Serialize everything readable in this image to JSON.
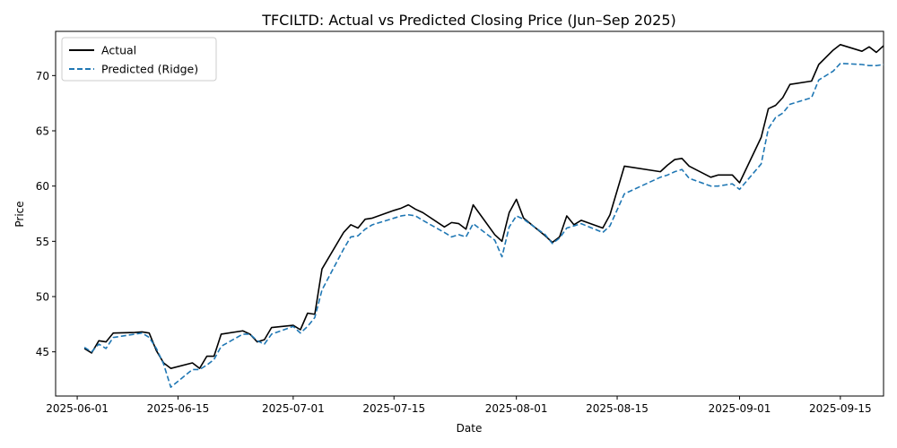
{
  "chart_data": {
    "type": "line",
    "title": "TFCILTD: Actual vs Predicted Closing Price (Jun–Sep 2025)",
    "xlabel": "Date",
    "ylabel": "Price",
    "xlim": [
      "2025-05-29",
      "2025-09-21"
    ],
    "ylim": [
      41.0,
      74.0
    ],
    "x_ticks": [
      "2025-06-01",
      "2025-06-15",
      "2025-07-01",
      "2025-07-15",
      "2025-08-01",
      "2025-08-15",
      "2025-09-01",
      "2025-09-15"
    ],
    "y_ticks": [
      45,
      50,
      55,
      60,
      65,
      70
    ],
    "grid": false,
    "legend_position": "top-left",
    "series": [
      {
        "name": "Actual",
        "color": "#000000",
        "style": "solid",
        "points": [
          [
            "2025-06-02",
            45.3
          ],
          [
            "2025-06-03",
            44.9
          ],
          [
            "2025-06-04",
            46.0
          ],
          [
            "2025-06-05",
            45.9
          ],
          [
            "2025-06-06",
            46.7
          ],
          [
            "2025-06-09",
            46.75
          ],
          [
            "2025-06-10",
            46.8
          ],
          [
            "2025-06-11",
            46.7
          ],
          [
            "2025-06-12",
            45.1
          ],
          [
            "2025-06-13",
            44.0
          ],
          [
            "2025-06-14",
            43.5
          ],
          [
            "2025-06-17",
            44.0
          ],
          [
            "2025-06-18",
            43.5
          ],
          [
            "2025-06-19",
            44.6
          ],
          [
            "2025-06-20",
            44.6
          ],
          [
            "2025-06-21",
            46.6
          ],
          [
            "2025-06-24",
            46.9
          ],
          [
            "2025-06-25",
            46.6
          ],
          [
            "2025-06-26",
            45.9
          ],
          [
            "2025-06-27",
            46.1
          ],
          [
            "2025-06-28",
            47.2
          ],
          [
            "2025-07-01",
            47.4
          ],
          [
            "2025-07-02",
            47.0
          ],
          [
            "2025-07-03",
            48.5
          ],
          [
            "2025-07-04",
            48.4
          ],
          [
            "2025-07-05",
            52.5
          ],
          [
            "2025-07-08",
            55.8
          ],
          [
            "2025-07-09",
            56.5
          ],
          [
            "2025-07-10",
            56.2
          ],
          [
            "2025-07-11",
            57.0
          ],
          [
            "2025-07-12",
            57.1
          ],
          [
            "2025-07-15",
            57.8
          ],
          [
            "2025-07-16",
            58.0
          ],
          [
            "2025-07-17",
            58.3
          ],
          [
            "2025-07-18",
            57.9
          ],
          [
            "2025-07-19",
            57.6
          ],
          [
            "2025-07-22",
            56.3
          ],
          [
            "2025-07-23",
            56.7
          ],
          [
            "2025-07-24",
            56.6
          ],
          [
            "2025-07-25",
            56.1
          ],
          [
            "2025-07-26",
            58.3
          ],
          [
            "2025-07-29",
            55.6
          ],
          [
            "2025-07-30",
            55.0
          ],
          [
            "2025-07-31",
            57.6
          ],
          [
            "2025-08-01",
            58.8
          ],
          [
            "2025-08-02",
            57.1
          ],
          [
            "2025-08-05",
            55.5
          ],
          [
            "2025-08-06",
            54.9
          ],
          [
            "2025-08-07",
            55.4
          ],
          [
            "2025-08-08",
            57.3
          ],
          [
            "2025-08-09",
            56.5
          ],
          [
            "2025-08-10",
            56.9
          ],
          [
            "2025-08-13",
            56.2
          ],
          [
            "2025-08-14",
            57.4
          ],
          [
            "2025-08-16",
            61.8
          ],
          [
            "2025-08-21",
            61.3
          ],
          [
            "2025-08-22",
            61.9
          ],
          [
            "2025-08-23",
            62.4
          ],
          [
            "2025-08-24",
            62.5
          ],
          [
            "2025-08-25",
            61.8
          ],
          [
            "2025-08-28",
            60.8
          ],
          [
            "2025-08-29",
            61.0
          ],
          [
            "2025-08-31",
            61.0
          ],
          [
            "2025-09-01",
            60.3
          ],
          [
            "2025-09-04",
            64.4
          ],
          [
            "2025-09-05",
            67.0
          ],
          [
            "2025-09-06",
            67.3
          ],
          [
            "2025-09-07",
            68.0
          ],
          [
            "2025-09-08",
            69.2
          ],
          [
            "2025-09-11",
            69.5
          ],
          [
            "2025-09-12",
            71.0
          ],
          [
            "2025-09-14",
            72.3
          ],
          [
            "2025-09-15",
            72.8
          ],
          [
            "2025-09-18",
            72.2
          ],
          [
            "2025-09-19",
            72.6
          ],
          [
            "2025-09-20",
            72.1
          ],
          [
            "2025-09-21",
            72.7
          ]
        ]
      },
      {
        "name": "Predicted (Ridge)",
        "color": "#1f77b4",
        "style": "dashed",
        "points": [
          [
            "2025-06-02",
            45.4
          ],
          [
            "2025-06-03",
            45.0
          ],
          [
            "2025-06-04",
            45.7
          ],
          [
            "2025-06-05",
            45.3
          ],
          [
            "2025-06-06",
            46.3
          ],
          [
            "2025-06-09",
            46.6
          ],
          [
            "2025-06-10",
            46.7
          ],
          [
            "2025-06-11",
            46.3
          ],
          [
            "2025-06-12",
            45.3
          ],
          [
            "2025-06-13",
            43.9
          ],
          [
            "2025-06-14",
            41.8
          ],
          [
            "2025-06-17",
            43.4
          ],
          [
            "2025-06-18",
            43.4
          ],
          [
            "2025-06-19",
            43.8
          ],
          [
            "2025-06-20",
            44.3
          ],
          [
            "2025-06-21",
            45.5
          ],
          [
            "2025-06-24",
            46.6
          ],
          [
            "2025-06-25",
            46.6
          ],
          [
            "2025-06-26",
            46.0
          ],
          [
            "2025-06-27",
            45.7
          ],
          [
            "2025-06-28",
            46.6
          ],
          [
            "2025-07-01",
            47.3
          ],
          [
            "2025-07-02",
            46.7
          ],
          [
            "2025-07-03",
            47.3
          ],
          [
            "2025-07-04",
            48.1
          ],
          [
            "2025-07-05",
            50.6
          ],
          [
            "2025-07-08",
            54.3
          ],
          [
            "2025-07-09",
            55.4
          ],
          [
            "2025-07-10",
            55.5
          ],
          [
            "2025-07-11",
            56.1
          ],
          [
            "2025-07-12",
            56.5
          ],
          [
            "2025-07-15",
            57.1
          ],
          [
            "2025-07-16",
            57.3
          ],
          [
            "2025-07-17",
            57.4
          ],
          [
            "2025-07-18",
            57.3
          ],
          [
            "2025-07-19",
            56.9
          ],
          [
            "2025-07-22",
            55.8
          ],
          [
            "2025-07-23",
            55.4
          ],
          [
            "2025-07-24",
            55.6
          ],
          [
            "2025-07-25",
            55.4
          ],
          [
            "2025-07-26",
            56.6
          ],
          [
            "2025-07-29",
            55.1
          ],
          [
            "2025-07-30",
            53.6
          ],
          [
            "2025-07-31",
            56.3
          ],
          [
            "2025-08-01",
            57.3
          ],
          [
            "2025-08-02",
            57.0
          ],
          [
            "2025-08-05",
            55.6
          ],
          [
            "2025-08-06",
            54.8
          ],
          [
            "2025-08-07",
            55.3
          ],
          [
            "2025-08-08",
            56.2
          ],
          [
            "2025-08-09",
            56.4
          ],
          [
            "2025-08-10",
            56.6
          ],
          [
            "2025-08-13",
            55.8
          ],
          [
            "2025-08-14",
            56.4
          ],
          [
            "2025-08-16",
            59.3
          ],
          [
            "2025-08-21",
            60.8
          ],
          [
            "2025-08-22",
            61.0
          ],
          [
            "2025-08-23",
            61.3
          ],
          [
            "2025-08-24",
            61.5
          ],
          [
            "2025-08-25",
            60.7
          ],
          [
            "2025-08-28",
            60.0
          ],
          [
            "2025-08-29",
            60.0
          ],
          [
            "2025-08-31",
            60.2
          ],
          [
            "2025-09-01",
            59.7
          ],
          [
            "2025-09-04",
            62.0
          ],
          [
            "2025-09-05",
            65.2
          ],
          [
            "2025-09-06",
            66.2
          ],
          [
            "2025-09-07",
            66.6
          ],
          [
            "2025-09-08",
            67.4
          ],
          [
            "2025-09-11",
            68.0
          ],
          [
            "2025-09-12",
            69.6
          ],
          [
            "2025-09-14",
            70.4
          ],
          [
            "2025-09-15",
            71.1
          ],
          [
            "2025-09-18",
            71.0
          ],
          [
            "2025-09-19",
            70.9
          ],
          [
            "2025-09-20",
            70.9
          ],
          [
            "2025-09-21",
            71.0
          ]
        ]
      }
    ]
  }
}
